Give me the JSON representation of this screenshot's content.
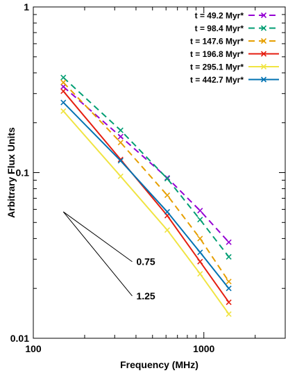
{
  "chart_data": {
    "type": "line",
    "xlabel": "Frequency (MHz)",
    "ylabel": "Arbitrary Flux Units",
    "x_scale": "log",
    "y_scale": "log",
    "xlim": [
      100,
      3000
    ],
    "ylim": [
      0.01,
      1
    ],
    "x_ticks": [
      {
        "value": 100,
        "label": "100"
      },
      {
        "value": 1000,
        "label": "1000"
      }
    ],
    "y_ticks": [
      {
        "value": 0.01,
        "label": "0.01"
      },
      {
        "value": 0.1,
        "label": "0.1"
      },
      {
        "value": 1,
        "label": "1"
      }
    ],
    "grid": false,
    "legend_position": "top-right",
    "x": [
      150,
      325,
      610,
      950,
      1400
    ],
    "series": [
      {
        "name": "t = 49.2 Myr*",
        "color": "#9400d3",
        "dash": true,
        "values": [
          0.33,
          0.165,
          0.093,
          0.059,
          0.038
        ]
      },
      {
        "name": "t = 98.4 Myr*",
        "color": "#009e73",
        "dash": true,
        "values": [
          0.375,
          0.18,
          0.092,
          0.052,
          0.031
        ]
      },
      {
        "name": "t = 147.6 Myr*",
        "color": "#e69f00",
        "dash": true,
        "values": [
          0.35,
          0.152,
          0.073,
          0.04,
          0.022
        ]
      },
      {
        "name": "t = 196.8 Myr*",
        "color": "#e51e10",
        "dash": false,
        "values": [
          0.31,
          0.12,
          0.055,
          0.029,
          0.0165
        ]
      },
      {
        "name": "t = 295.1 Myr*",
        "color": "#f0e442",
        "dash": false,
        "values": [
          0.235,
          0.095,
          0.045,
          0.0245,
          0.014
        ]
      },
      {
        "name": "t = 442.7 Myr*",
        "color": "#0072b2",
        "dash": false,
        "values": [
          0.265,
          0.118,
          0.058,
          0.033,
          0.02
        ]
      }
    ],
    "annotations": [
      {
        "label": "0.75",
        "slope": -0.75,
        "from": [
          150,
          0.058
        ],
        "to": [
          380,
          0.029
        ]
      },
      {
        "label": "1.25",
        "slope": -1.25,
        "from": [
          150,
          0.058
        ],
        "to": [
          380,
          0.018
        ]
      }
    ]
  }
}
